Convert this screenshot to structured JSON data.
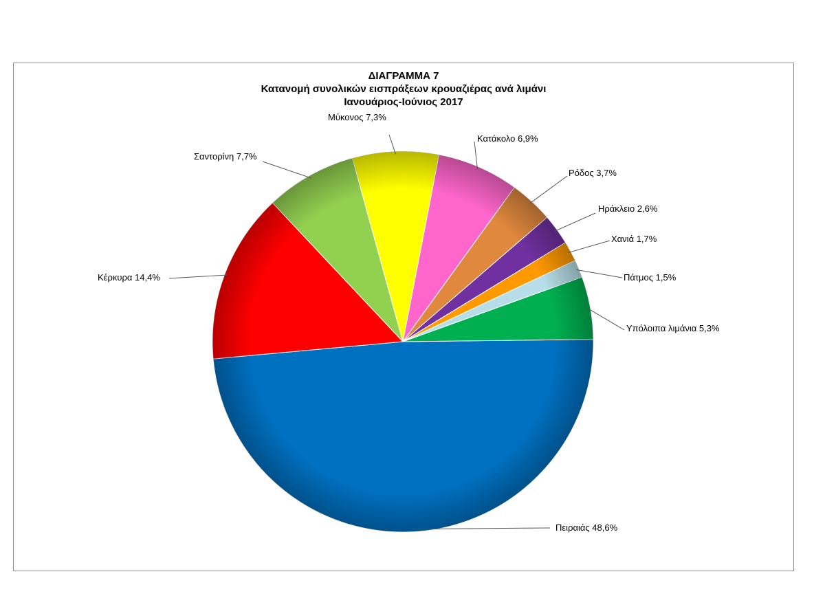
{
  "chart_data": {
    "type": "pie",
    "title_lines": [
      "ΔΙΑΓΡΑΜΜΑ 7",
      "Κατανομή συνολικών εισπράξεων κρουαζιέρας ανά  λιμάνι",
      "Ιανουάριος-Ιούνιος 2017"
    ],
    "slices": [
      {
        "name": "Πειραιάς",
        "value": 48.6,
        "label": "Πειραιάς  48,6%",
        "color": "#0070C0"
      },
      {
        "name": "Κέρκυρα",
        "value": 14.4,
        "label": "Κέρκυρα 14,4%",
        "color": "#FF0000"
      },
      {
        "name": "Σαντορίνη",
        "value": 7.7,
        "label": "Σαντορίνη 7,7%",
        "color": "#92D050"
      },
      {
        "name": "Μύκονος",
        "value": 7.3,
        "label": "Μύκονος 7,3%",
        "color": "#FFFF00"
      },
      {
        "name": "Κατάκολο",
        "value": 6.9,
        "label": "Κατάκολο 6,9%",
        "color": "#FF66CC"
      },
      {
        "name": "Ρόδος",
        "value": 3.7,
        "label": "Ρόδος 3,7%",
        "color": "#E0883E"
      },
      {
        "name": "Ηράκλειο",
        "value": 2.6,
        "label": "Ηράκλειο 2,6%",
        "color": "#7030A0"
      },
      {
        "name": "Χανιά",
        "value": 1.7,
        "label": "Χανιά 1,7%",
        "color": "#FF9900"
      },
      {
        "name": "Πάτμος",
        "value": 1.5,
        "label": "Πάτμος 1,5%",
        "color": "#B7DEE8"
      },
      {
        "name": "Υπόλοιπα λιμάνια",
        "value": 5.3,
        "label": "Υπόλοιπα λιμάνια 5,3%",
        "color": "#00B050"
      }
    ]
  }
}
